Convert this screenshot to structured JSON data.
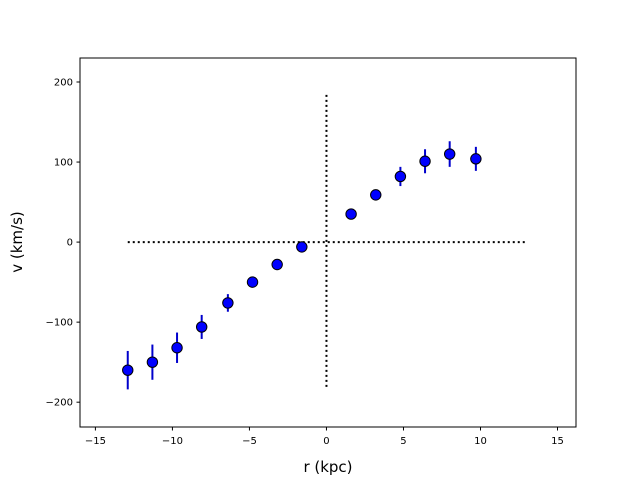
{
  "chart_data": {
    "type": "scatter",
    "title": "",
    "xlabel": "r (kpc)",
    "ylabel": "v (km/s)",
    "xlim": [
      -16,
      16.2
    ],
    "ylim": [
      -231,
      230
    ],
    "xticks": [
      -15,
      -10,
      -5,
      0,
      5,
      10,
      15
    ],
    "yticks": [
      -200,
      -100,
      0,
      100,
      200
    ],
    "xtick_labels": [
      "−15",
      "−10",
      "−5",
      "0",
      "5",
      "10",
      "15"
    ],
    "ytick_labels": [
      "−200",
      "−100",
      "0",
      "100",
      "200"
    ],
    "grid": false,
    "legend": "none",
    "colors": {
      "marker_fill": "#0000ff",
      "marker_edge": "#000000",
      "errorbar": "#0000cc",
      "guide": "#000000"
    },
    "points": [
      {
        "x": -12.9,
        "y": -160,
        "err": 24
      },
      {
        "x": -11.3,
        "y": -150,
        "err": 22
      },
      {
        "x": -9.7,
        "y": -132,
        "err": 19
      },
      {
        "x": -8.1,
        "y": -106,
        "err": 15
      },
      {
        "x": -6.4,
        "y": -76,
        "err": 11
      },
      {
        "x": -4.8,
        "y": -50,
        "err": 6
      },
      {
        "x": -3.2,
        "y": -28,
        "err": 4
      },
      {
        "x": -1.6,
        "y": -6,
        "err": 2
      },
      {
        "x": 1.6,
        "y": 35,
        "err": 4
      },
      {
        "x": 3.2,
        "y": 59,
        "err": 6
      },
      {
        "x": 4.8,
        "y": 82,
        "err": 12
      },
      {
        "x": 6.4,
        "y": 101,
        "err": 15
      },
      {
        "x": 8.0,
        "y": 110,
        "err": 16
      },
      {
        "x": 9.7,
        "y": 104,
        "err": 15
      }
    ],
    "guides": {
      "horizontal": {
        "y": 0,
        "x_range": [
          -12.9,
          12.9
        ],
        "style": "dotted"
      },
      "vertical": {
        "x": 0,
        "y_range": [
          -184,
          184
        ],
        "style": "dotted"
      }
    }
  }
}
